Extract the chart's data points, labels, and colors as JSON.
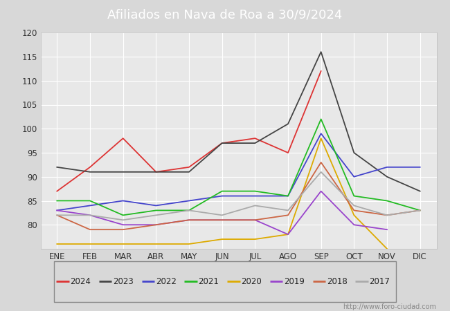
{
  "title": "Afiliados en Nava de Roa a 30/9/2024",
  "header_bg": "#4a7cc7",
  "x_labels": [
    "ENE",
    "FEB",
    "MAR",
    "ABR",
    "MAY",
    "JUN",
    "JUL",
    "AGO",
    "SEP",
    "OCT",
    "NOV",
    "DIC"
  ],
  "ylim": [
    75,
    120
  ],
  "yticks": [
    80,
    85,
    90,
    95,
    100,
    105,
    110,
    115,
    120
  ],
  "series": {
    "2024": {
      "color": "#dd3333",
      "data": [
        87,
        92,
        98,
        91,
        92,
        97,
        98,
        95,
        112,
        null,
        null,
        null
      ]
    },
    "2023": {
      "color": "#444444",
      "data": [
        92,
        91,
        91,
        91,
        91,
        97,
        97,
        101,
        116,
        95,
        90,
        87
      ]
    },
    "2022": {
      "color": "#4444cc",
      "data": [
        83,
        84,
        85,
        84,
        85,
        86,
        86,
        86,
        99,
        90,
        92,
        92
      ]
    },
    "2021": {
      "color": "#22bb22",
      "data": [
        85,
        85,
        82,
        83,
        83,
        87,
        87,
        86,
        102,
        86,
        85,
        83
      ]
    },
    "2020": {
      "color": "#ddaa00",
      "data": [
        76,
        76,
        76,
        76,
        76,
        77,
        77,
        78,
        98,
        82,
        75,
        null
      ]
    },
    "2019": {
      "color": "#9944cc",
      "data": [
        83,
        82,
        80,
        80,
        81,
        81,
        81,
        78,
        87,
        80,
        79,
        null
      ]
    },
    "2018": {
      "color": "#cc6644",
      "data": [
        82,
        79,
        79,
        80,
        81,
        81,
        81,
        82,
        93,
        83,
        82,
        83
      ]
    },
    "2017": {
      "color": "#aaaaaa",
      "data": [
        82,
        82,
        81,
        82,
        83,
        82,
        84,
        83,
        91,
        84,
        82,
        83
      ]
    }
  },
  "footer_text": "http://www.foro-ciudad.com",
  "figure_bg": "#d8d8d8",
  "plot_bg": "#e8e8e8",
  "grid_color": "#ffffff",
  "legend_bg": "#ffffff",
  "legend_border": "#888888"
}
